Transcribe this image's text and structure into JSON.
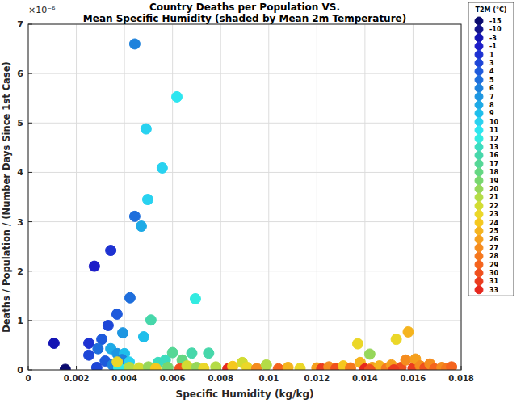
{
  "chart_data": {
    "type": "scatter",
    "title": "Country Deaths per Population VS.",
    "subtitle": "Mean Specific Humidity (shaded by Mean 2m Temperature)",
    "x_label": "Specific Humidity (kg/kg)",
    "y_label": "Deaths / Population / (Number Days Since 1st Case)",
    "annotations": [
      "×10⁻⁶"
    ],
    "xlim": [
      0,
      0.018
    ],
    "xticks": [
      0,
      0.002,
      0.004,
      0.006,
      0.008,
      0.01,
      0.012,
      0.014,
      0.016,
      0.018
    ],
    "ylim": [
      0,
      7e-06
    ],
    "yticks": [
      0,
      {
        "value": 1e-06,
        "label": "1"
      },
      {
        "value": 2e-06,
        "label": "2"
      },
      {
        "value": 3e-06,
        "label": "3"
      },
      {
        "value": 4e-06,
        "label": "4"
      },
      {
        "value": 5e-06,
        "label": "5"
      },
      {
        "value": 6e-06,
        "label": "6"
      },
      {
        "value": 7e-06,
        "label": "7"
      }
    ],
    "grid": true,
    "marker": "circle",
    "legend": "right",
    "x": [
      0.00443,
      0.00618,
      0.0049,
      0.00557,
      0.00497,
      0.00443,
      0.0047,
      0.00343,
      0.00275,
      0.00423,
      0.00695,
      0.00369,
      0.0051,
      0.00332,
      0.00393,
      0.0048,
      0.00306,
      0.00107,
      0.00154,
      0.00252,
      0.00252,
      0.0029,
      0.00343,
      0.0037,
      0.004,
      0.0039,
      0.0032,
      0.0042,
      0.0035,
      0.00285,
      0.00376,
      0.0037,
      0.0054,
      0.0057,
      0.006,
      0.0068,
      0.0075,
      0.0064,
      0.0042,
      0.0046,
      0.005,
      0.0053,
      0.0058,
      0.0063,
      0.0066,
      0.007,
      0.0073,
      0.0078,
      0.0083,
      0.0085,
      0.0089,
      0.0091,
      0.0095,
      0.0099,
      0.0104,
      0.0108,
      0.0113,
      0.012,
      0.0122,
      0.0125,
      0.0128,
      0.0131,
      0.0134,
      0.0137,
      0.0138,
      0.014,
      0.0142,
      0.0143,
      0.0146,
      0.0149,
      0.0151,
      0.0153,
      0.0155,
      0.0157,
      0.0158,
      0.016,
      0.0161,
      0.0163,
      0.0165,
      0.0167,
      0.0169,
      0.0172,
      0.0174,
      0.0176,
      0.0142,
      0.0152
    ],
    "values": [
      6.6e-06,
      5.53e-06,
      4.88e-06,
      4.09e-06,
      3.45e-06,
      3.11e-06,
      2.91e-06,
      2.42e-06,
      2.1e-06,
      1.46e-06,
      1.44e-06,
      1.13e-06,
      1.01e-06,
      9e-07,
      7.5e-07,
      6.7e-07,
      6.2e-07,
      5.4e-07,
      1e-08,
      5.4e-07,
      3e-07,
      4.3e-07,
      4.3e-07,
      3.3e-07,
      3.3e-07,
      2.1e-07,
      1.8e-07,
      1.6e-07,
      1e-07,
      5e-08,
      5e-08,
      1.6e-07,
      1.5e-07,
      2e-07,
      3.5e-07,
      3.4e-07,
      3.4e-07,
      2e-07,
      5e-08,
      4e-08,
      6e-08,
      3e-08,
      5e-08,
      2e-08,
      8e-08,
      5e-08,
      3e-08,
      6e-08,
      2e-08,
      7e-08,
      1.5e-07,
      5e-08,
      3e-08,
      1e-07,
      2e-08,
      5e-08,
      3e-08,
      4e-08,
      2e-08,
      6e-08,
      3e-08,
      8e-08,
      4e-08,
      5.3e-07,
      1.5e-07,
      2e-08,
      3.2e-07,
      5e-08,
      8e-08,
      3e-08,
      1e-07,
      6.2e-07,
      5e-08,
      2e-07,
      7.7e-07,
      3e-08,
      2.2e-07,
      8e-08,
      4e-08,
      1.2e-07,
      2e-08,
      5e-08,
      3e-08,
      6e-08,
      0,
      0
    ],
    "t2m": [
      6,
      11,
      10,
      10,
      10,
      5,
      8,
      1,
      -1,
      5,
      12,
      4,
      16,
      3,
      7,
      9,
      4,
      -3,
      -15,
      1,
      3,
      5,
      8,
      7,
      9,
      6,
      4,
      10,
      6,
      3,
      12,
      23,
      13,
      13,
      17,
      16,
      16,
      18,
      21,
      22,
      20,
      24,
      19,
      30,
      22,
      20,
      23,
      21,
      33,
      24,
      22,
      23,
      27,
      21,
      29,
      25,
      23,
      26,
      31,
      27,
      30,
      24,
      28,
      23,
      25,
      33,
      20,
      26,
      25,
      28,
      26,
      23,
      30,
      27,
      25,
      31,
      26,
      27,
      30,
      27,
      29,
      27,
      28,
      29,
      30,
      31
    ],
    "colorbar": {
      "title": "T2M (°C)",
      "values": [
        -15,
        -10,
        -3,
        -1,
        1,
        3,
        4,
        5,
        6,
        7,
        8,
        9,
        10,
        11,
        12,
        13,
        16,
        17,
        18,
        19,
        20,
        21,
        22,
        23,
        24,
        25,
        26,
        27,
        28,
        29,
        30,
        31,
        33
      ],
      "colors": [
        "#0a0a6e",
        "#14148c",
        "#1414b4",
        "#1e1ec8",
        "#1e32d2",
        "#1e46d7",
        "#1e5adc",
        "#1e6edc",
        "#1e82dc",
        "#1e96e1",
        "#1eaae6",
        "#1ebeeb",
        "#28d2f0",
        "#2de6f0",
        "#32ebe1",
        "#3cdcbe",
        "#46d7aa",
        "#55d796",
        "#64d782",
        "#78d76e",
        "#96d75a",
        "#b4dc46",
        "#d2dc32",
        "#ebd728",
        "#f5c81e",
        "#f5b41e",
        "#f5a01e",
        "#f58c1e",
        "#f5781e",
        "#f5641e",
        "#f0501e",
        "#eb3c1e",
        "#e6281e"
      ]
    }
  }
}
